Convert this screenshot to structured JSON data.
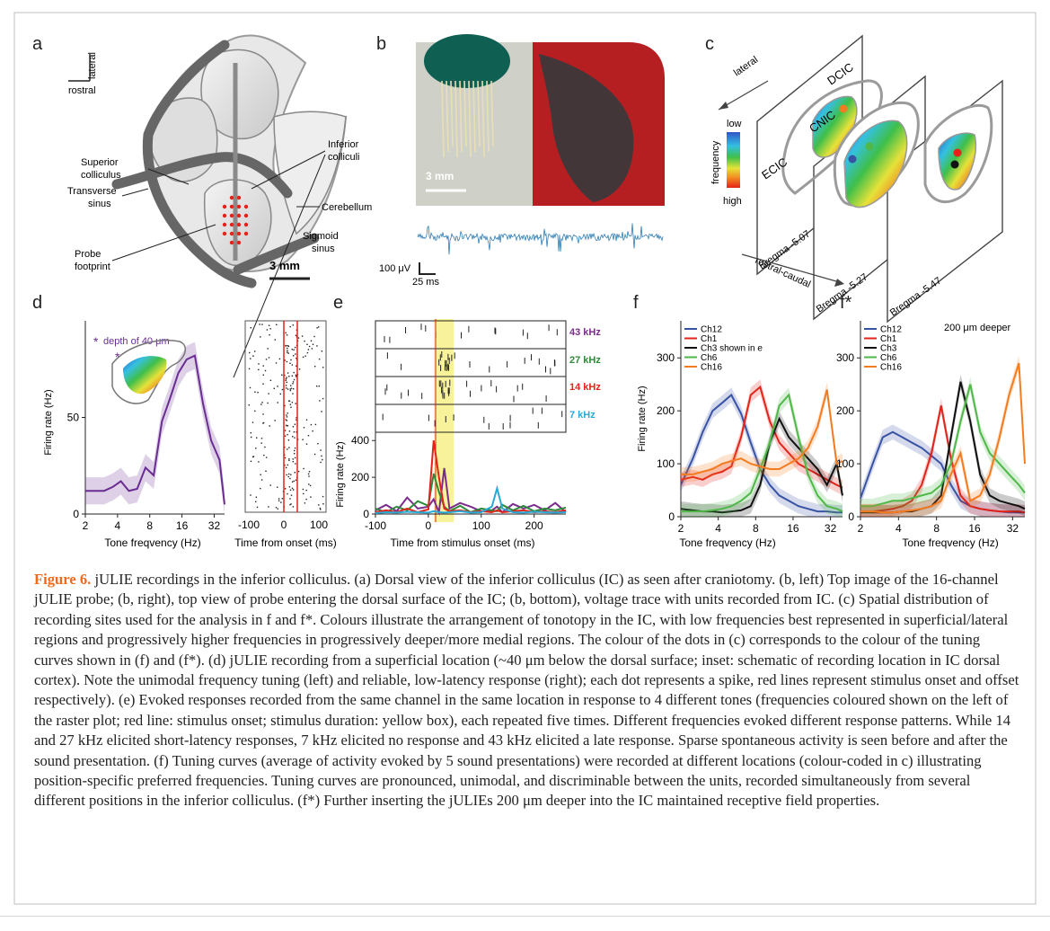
{
  "figure": {
    "panel_letters": [
      "a",
      "b",
      "c",
      "d",
      "e",
      "f",
      "f*"
    ],
    "accent_color": "#ef6a1b",
    "border_color": "#bfbfbf"
  },
  "panel_a": {
    "compass_up": "lateral",
    "compass_left": "rostral",
    "labels": {
      "inferior_colliculi": [
        "Inferior",
        "colliculi"
      ],
      "superior_colliculus": [
        "Superior",
        "colliculus"
      ],
      "cerebellum": "Cerebellum",
      "transverse_sinus": [
        "Transverse",
        "sinus"
      ],
      "sigmoid_sinus": [
        "Sigmoid",
        "sinus"
      ],
      "probe_footprint": [
        "Probe",
        "footprint"
      ]
    },
    "scale_bar": "3 mm",
    "probe_dot_color": "#e2231a"
  },
  "panel_b": {
    "scale_bar": "3 mm",
    "voltage_scale": "100 μV",
    "time_scale": "25 ms",
    "trace_color": "#2f7db3"
  },
  "panel_c": {
    "direction_top": "lateral",
    "direction_bottom": "rostral-caudal",
    "colorbar_title": "frequency",
    "colorbar_low": "low",
    "colorbar_high": "high",
    "regions": [
      "DCIC",
      "CNIC",
      "ECIC"
    ],
    "sections": [
      "Bregma -5.07",
      "Bregma -5.27",
      "Bregma -5.47"
    ]
  },
  "panel_d": {
    "inset_label": "depth of 40 μm",
    "inset_star": "*",
    "purple": "#6a2d91",
    "raster_xlabel": "Time from onset (ms)",
    "raster_ticks": [
      "-100",
      "0",
      "100"
    ]
  },
  "panel_e": {
    "tone_labels": [
      {
        "label": "43 kHz",
        "color": "#7b2d8e"
      },
      {
        "label": "27 kHz",
        "color": "#2e8b3a"
      },
      {
        "label": "14 kHz",
        "color": "#e2231a"
      },
      {
        "label": "7 kHz",
        "color": "#29a9d6"
      }
    ],
    "highlight_color": "#f7f08a"
  },
  "panel_f_star_note": "200 μm deeper",
  "chart_data": [
    {
      "type": "line",
      "panel": "d",
      "x_scale": "log",
      "xlabel": "Tone freqvency (Hz)",
      "ylabel": "Firing rate (Hz)",
      "xticks": [
        "2",
        "4",
        "8",
        "16",
        "32"
      ],
      "yticks": [
        "0",
        "50"
      ],
      "ylim": [
        0,
        100
      ],
      "x": [
        2,
        2.5,
        3,
        3.6,
        4.3,
        5.1,
        6.1,
        7.3,
        8.7,
        10.4,
        12.4,
        14.8,
        17.7,
        21.1,
        25.2,
        30,
        35.9,
        40
      ],
      "series": [
        {
          "values": [
            12,
            12,
            12,
            14,
            17,
            12,
            13,
            24,
            20,
            48,
            60,
            73,
            80,
            82,
            57,
            38,
            28,
            5
          ],
          "color": "#6a2d91"
        }
      ]
    },
    {
      "type": "line",
      "panel": "e",
      "xlabel": "Time from stimulus onset (ms)",
      "ylabel": "Firing rate (Hz)",
      "xticks": [
        "-100",
        "0",
        "100",
        "200"
      ],
      "yticks": [
        "0",
        "200",
        "400"
      ],
      "xlim": [
        -100,
        260
      ],
      "ylim": [
        0,
        450
      ],
      "x": [
        -100,
        -80,
        -60,
        -40,
        -20,
        0,
        10,
        20,
        30,
        40,
        60,
        80,
        100,
        120,
        130,
        140,
        160,
        180,
        200,
        220,
        240,
        260
      ],
      "series": [
        {
          "name": "43 kHz",
          "color": "#7b2d8e",
          "values": [
            20,
            50,
            15,
            90,
            30,
            40,
            80,
            10,
            250,
            30,
            60,
            40,
            15,
            20,
            40,
            10,
            55,
            30,
            50,
            20,
            60,
            10
          ]
        },
        {
          "name": "27 kHz",
          "color": "#2e8b3a",
          "values": [
            30,
            10,
            40,
            20,
            70,
            45,
            220,
            120,
            40,
            15,
            45,
            10,
            30,
            20,
            15,
            50,
            20,
            45,
            15,
            30,
            20,
            35
          ]
        },
        {
          "name": "14 kHz",
          "color": "#e2231a",
          "values": [
            10,
            20,
            10,
            30,
            10,
            25,
            400,
            200,
            30,
            15,
            20,
            10,
            15,
            10,
            20,
            10,
            15,
            20,
            10,
            15,
            10,
            20
          ]
        },
        {
          "name": "7 kHz",
          "color": "#29a9d6",
          "values": [
            5,
            10,
            8,
            12,
            10,
            8,
            15,
            10,
            8,
            10,
            15,
            8,
            10,
            40,
            140,
            30,
            10,
            8,
            12,
            10,
            8,
            10
          ]
        }
      ]
    },
    {
      "type": "line",
      "panel": "f",
      "x_scale": "log",
      "xlabel": "Tone freqvency (Hz)",
      "ylabel": "Firing rate (Hz)",
      "xticks": [
        "2",
        "4",
        "8",
        "16",
        "32"
      ],
      "yticks": [
        "0",
        "100",
        "200",
        "300"
      ],
      "ylim": [
        0,
        370
      ],
      "x": [
        2,
        2.5,
        3,
        3.6,
        4.3,
        5.1,
        6.1,
        7.3,
        8.7,
        10.4,
        12.4,
        14.8,
        17.7,
        21.1,
        25.2,
        30,
        35.9,
        40
      ],
      "series": [
        {
          "name": "Ch12",
          "color": "#3953a4",
          "values": [
            60,
            110,
            160,
            200,
            215,
            230,
            195,
            140,
            90,
            60,
            40,
            30,
            20,
            15,
            10,
            10,
            8,
            8
          ]
        },
        {
          "name": "Ch1",
          "color": "#e2231a",
          "values": [
            70,
            75,
            70,
            80,
            85,
            95,
            150,
            230,
            245,
            180,
            140,
            120,
            100,
            90,
            80,
            70,
            60,
            55
          ]
        },
        {
          "name": "Ch3 shown in e",
          "color": "#111111",
          "values": [
            15,
            12,
            10,
            10,
            8,
            10,
            12,
            20,
            60,
            140,
            185,
            150,
            130,
            110,
            90,
            60,
            100,
            40
          ]
        },
        {
          "name": "Ch6",
          "color": "#4fb848",
          "values": [
            10,
            10,
            10,
            12,
            15,
            20,
            30,
            45,
            90,
            140,
            210,
            230,
            150,
            80,
            40,
            20,
            15,
            10
          ]
        },
        {
          "name": "Ch16",
          "color": "#f47c20",
          "values": [
            80,
            80,
            85,
            90,
            100,
            105,
            110,
            100,
            95,
            90,
            90,
            100,
            110,
            130,
            170,
            240,
            100,
            105
          ]
        }
      ]
    },
    {
      "type": "line",
      "panel": "f*",
      "x_scale": "log",
      "xlabel": "Tone freqvency (Hz)",
      "xticks": [
        "2",
        "4",
        "8",
        "16",
        "32"
      ],
      "yticks": [
        "0",
        "100",
        "200",
        "300"
      ],
      "ylim": [
        0,
        370
      ],
      "x": [
        2,
        2.5,
        3,
        3.6,
        4.3,
        5.1,
        6.1,
        7.3,
        8.7,
        10.4,
        12.4,
        14.8,
        17.7,
        21.1,
        25.2,
        30,
        35.9,
        40
      ],
      "series": [
        {
          "name": "Ch12",
          "color": "#3953a4",
          "values": [
            35,
            100,
            150,
            160,
            150,
            140,
            130,
            115,
            100,
            60,
            30,
            20,
            15,
            12,
            10,
            8,
            8,
            8
          ]
        },
        {
          "name": "Ch1",
          "color": "#e2231a",
          "values": [
            10,
            10,
            12,
            15,
            20,
            30,
            60,
            120,
            210,
            110,
            40,
            20,
            15,
            12,
            10,
            10,
            10,
            8
          ]
        },
        {
          "name": "Ch3",
          "color": "#111111",
          "values": [
            8,
            8,
            8,
            8,
            10,
            10,
            15,
            20,
            40,
            150,
            255,
            180,
            80,
            40,
            30,
            25,
            20,
            15
          ]
        },
        {
          "name": "Ch6",
          "color": "#4fb848",
          "values": [
            20,
            20,
            25,
            30,
            30,
            35,
            40,
            45,
            60,
            100,
            180,
            250,
            160,
            120,
            100,
            80,
            60,
            45
          ]
        },
        {
          "name": "Ch16",
          "color": "#f47c20",
          "values": [
            10,
            10,
            8,
            8,
            10,
            12,
            15,
            20,
            30,
            80,
            120,
            30,
            40,
            80,
            150,
            230,
            290,
            100
          ]
        }
      ]
    }
  ],
  "caption": {
    "figure_label": "Figure 6.",
    "text": "jULIE recordings in the inferior colliculus. (a) Dorsal view of the inferior colliculus (IC) as seen after craniotomy. (b, left) Top image of the 16-channel jULIE probe; (b, right), top view of probe entering the dorsal surface of the IC; (b, bottom), voltage trace with units recorded from IC. (c) Spatial distribution of recording sites used for the analysis in f and f*. Colours illustrate the arrangement of tonotopy in the IC, with low frequencies best represented in superficial/lateral regions and progressively higher frequencies in progressively deeper/more medial regions. The colour of the dots in (c) corresponds to the colour of the tuning curves shown in (f) and (f*). (d) jULIE recording from a superficial location (~40 μm below the dorsal surface; inset: schematic of recording location in IC dorsal cortex). Note the unimodal frequency tuning (left) and reliable, low-latency response (right); each dot represents a spike, red lines represent stimulus onset and offset respectively). (e) Evoked responses recorded from the same channel in the same location in response to 4 different tones (frequencies coloured shown on the left of the raster plot; red line: stimulus onset; stimulus duration: yellow box), each repeated five times. Different frequencies evoked different response patterns. While 14 and 27 kHz elicited short-latency responses, 7 kHz elicited no response and 43 kHz elicited a late response. Sparse spontaneous activity is seen before and after the sound presentation. (f) Tuning curves (average of activity evoked by 5 sound presentations) were recorded at different locations (colour-coded in c) illustrating position-specific preferred frequencies. Tuning curves are pronounced, unimodal, and discriminable between the units, recorded simultaneously from several different positions in the inferior colliculus. (f*) Further inserting the jULIEs 200 μm deeper into the IC maintained receptive field properties."
  }
}
